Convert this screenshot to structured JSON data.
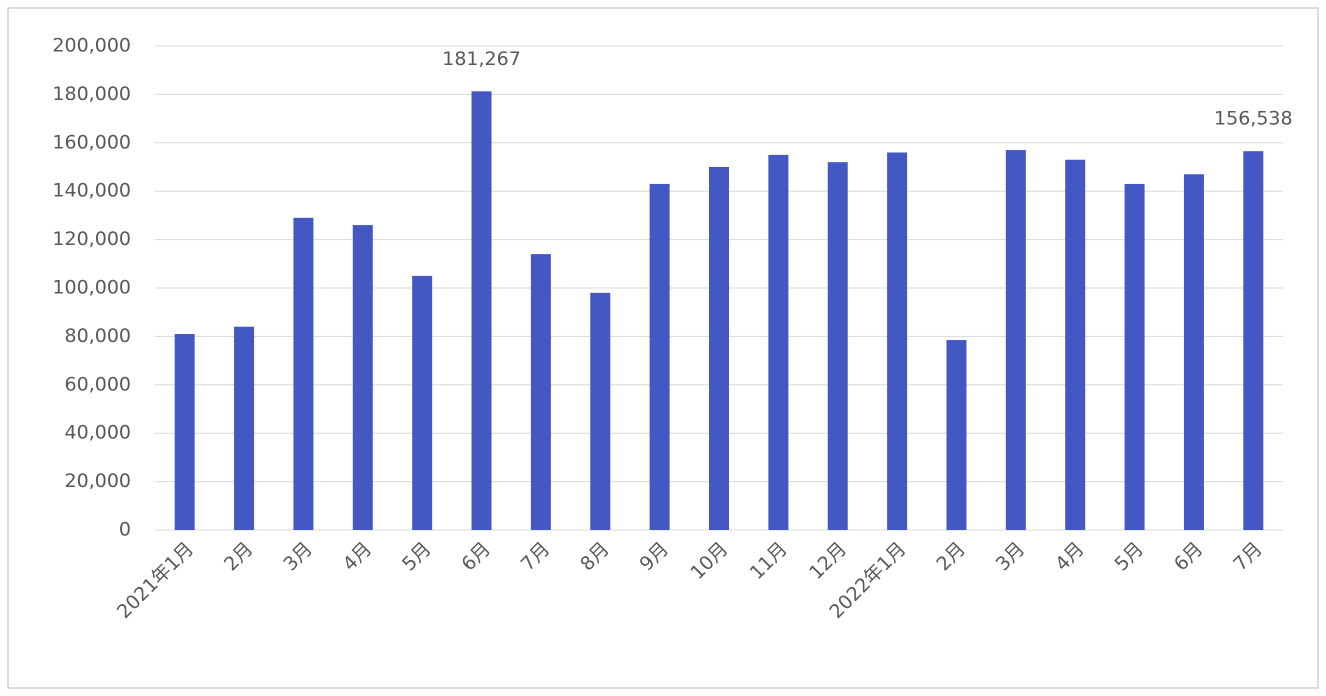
{
  "chart_data": {
    "type": "bar",
    "categories": [
      "2021年1月",
      "2月",
      "3月",
      "4月",
      "5月",
      "6月",
      "7月",
      "8月",
      "9月",
      "10月",
      "11月",
      "12月",
      "2022年1月",
      "2月",
      "3月",
      "4月",
      "5月",
      "6月",
      "7月"
    ],
    "values": [
      81000,
      84000,
      129000,
      126000,
      105000,
      181267,
      114000,
      98000,
      143000,
      150000,
      155000,
      152000,
      156000,
      78500,
      157000,
      153000,
      143000,
      147000,
      156538
    ],
    "value_labels": [
      null,
      null,
      null,
      null,
      null,
      "181,267",
      null,
      null,
      null,
      null,
      null,
      null,
      null,
      null,
      null,
      null,
      null,
      null,
      "156,538"
    ],
    "color": "#4458c4",
    "ylim": [
      0,
      200000
    ],
    "yticks": [
      0,
      {
        "value": 20000,
        "label": "20,000"
      },
      {
        "value": 40000,
        "label": "40,000"
      },
      {
        "value": 60000,
        "label": "60,000"
      },
      {
        "value": 80000,
        "label": "80,000"
      },
      {
        "value": 100000,
        "label": "100,000"
      },
      {
        "value": 120000,
        "label": "120,000"
      },
      {
        "value": 140000,
        "label": "140,000"
      },
      {
        "value": 160000,
        "label": "160,000"
      },
      {
        "value": 180000,
        "label": "180,000"
      },
      {
        "value": 200000,
        "label": "200,000"
      }
    ],
    "grid": true
  }
}
